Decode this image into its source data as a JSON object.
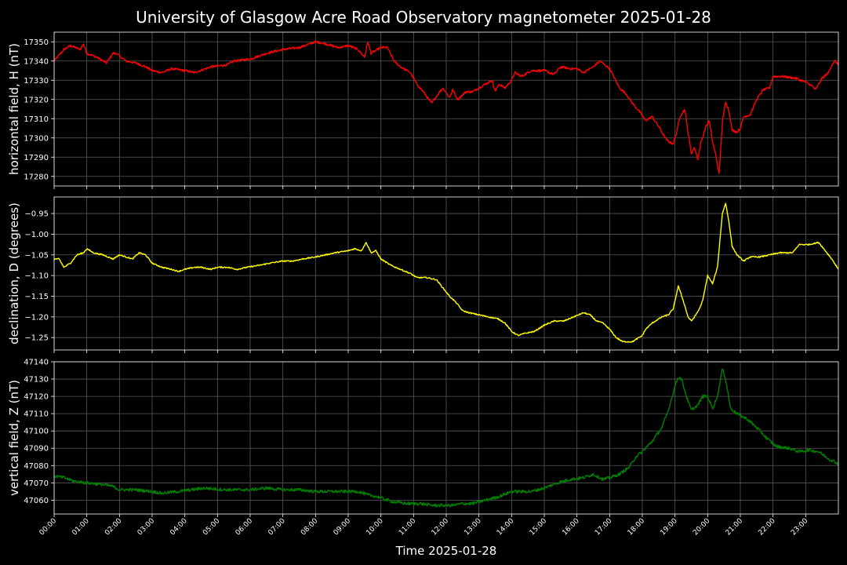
{
  "title": "University of Glasgow Acre Road Observatory magnetometer 2025-01-28",
  "xlabel": "Time 2025-01-28",
  "chart_data": [
    {
      "type": "line",
      "ylabel": "horizontal field, H (nT)",
      "color": "#ff0000",
      "ylim": [
        17275,
        17355
      ],
      "yticks": [
        17280,
        17290,
        17300,
        17310,
        17320,
        17330,
        17340,
        17350
      ],
      "decimals": 0,
      "noise": 0.6,
      "points": [
        [
          0,
          17340
        ],
        [
          0.3,
          17346
        ],
        [
          0.5,
          17348
        ],
        [
          0.8,
          17346
        ],
        [
          0.9,
          17349
        ],
        [
          1.0,
          17344
        ],
        [
          1.3,
          17342
        ],
        [
          1.6,
          17339
        ],
        [
          1.8,
          17344
        ],
        [
          1.9,
          17344
        ],
        [
          2.2,
          17340
        ],
        [
          2.5,
          17339
        ],
        [
          2.8,
          17337
        ],
        [
          3.0,
          17335
        ],
        [
          3.3,
          17334
        ],
        [
          3.6,
          17336
        ],
        [
          4.0,
          17335
        ],
        [
          4.3,
          17334
        ],
        [
          4.8,
          17337
        ],
        [
          5.3,
          17338
        ],
        [
          5.5,
          17340
        ],
        [
          6.0,
          17341
        ],
        [
          6.5,
          17344
        ],
        [
          7.0,
          17346
        ],
        [
          7.5,
          17347
        ],
        [
          8.0,
          17350
        ],
        [
          8.3,
          17349
        ],
        [
          8.7,
          17347
        ],
        [
          9.0,
          17348
        ],
        [
          9.3,
          17346
        ],
        [
          9.5,
          17342
        ],
        [
          9.6,
          17350
        ],
        [
          9.7,
          17344
        ],
        [
          10.0,
          17347
        ],
        [
          10.2,
          17347
        ],
        [
          10.4,
          17340
        ],
        [
          10.6,
          17337
        ],
        [
          10.9,
          17334
        ],
        [
          11.1,
          17328
        ],
        [
          11.3,
          17324
        ],
        [
          11.55,
          17318
        ],
        [
          11.8,
          17324
        ],
        [
          11.9,
          17326
        ],
        [
          12.1,
          17321
        ],
        [
          12.2,
          17325
        ],
        [
          12.35,
          17320
        ],
        [
          12.6,
          17324
        ],
        [
          12.8,
          17324
        ],
        [
          13.2,
          17328
        ],
        [
          13.4,
          17330
        ],
        [
          13.5,
          17324
        ],
        [
          13.6,
          17328
        ],
        [
          13.8,
          17326
        ],
        [
          14.0,
          17330
        ],
        [
          14.1,
          17334
        ],
        [
          14.3,
          17332
        ],
        [
          14.6,
          17335
        ],
        [
          15.0,
          17335
        ],
        [
          15.3,
          17333
        ],
        [
          15.5,
          17337
        ],
        [
          15.8,
          17336
        ],
        [
          16.0,
          17336
        ],
        [
          16.2,
          17334
        ],
        [
          16.5,
          17337
        ],
        [
          16.7,
          17340
        ],
        [
          17.0,
          17336
        ],
        [
          17.3,
          17326
        ],
        [
          17.5,
          17323
        ],
        [
          17.7,
          17318
        ],
        [
          17.9,
          17314
        ],
        [
          18.1,
          17309
        ],
        [
          18.3,
          17311
        ],
        [
          18.5,
          17306
        ],
        [
          18.7,
          17300
        ],
        [
          18.8,
          17298
        ],
        [
          18.95,
          17297
        ],
        [
          19.05,
          17303
        ],
        [
          19.15,
          17311
        ],
        [
          19.3,
          17315
        ],
        [
          19.4,
          17303
        ],
        [
          19.5,
          17292
        ],
        [
          19.6,
          17295
        ],
        [
          19.7,
          17289
        ],
        [
          19.8,
          17298
        ],
        [
          19.95,
          17306
        ],
        [
          20.05,
          17309
        ],
        [
          20.15,
          17298
        ],
        [
          20.25,
          17291
        ],
        [
          20.35,
          17281
        ],
        [
          20.45,
          17308
        ],
        [
          20.55,
          17319
        ],
        [
          20.65,
          17314
        ],
        [
          20.75,
          17304
        ],
        [
          20.9,
          17303
        ],
        [
          21.0,
          17305
        ],
        [
          21.1,
          17311
        ],
        [
          21.3,
          17312
        ],
        [
          21.5,
          17320
        ],
        [
          21.7,
          17325
        ],
        [
          21.9,
          17326
        ],
        [
          22.0,
          17332
        ],
        [
          22.3,
          17332
        ],
        [
          22.7,
          17331
        ],
        [
          23.0,
          17329
        ],
        [
          23.2,
          17327
        ],
        [
          23.3,
          17325
        ],
        [
          23.5,
          17331
        ],
        [
          23.7,
          17334
        ],
        [
          23.8,
          17338
        ],
        [
          23.9,
          17340
        ],
        [
          24.0,
          17338
        ]
      ]
    },
    {
      "type": "line",
      "ylabel": "declination, D (degrees)",
      "color": "#ffff00",
      "ylim": [
        -1.28,
        -0.91
      ],
      "yticks": [
        -1.25,
        -1.2,
        -1.15,
        -1.1,
        -1.05,
        -1.0,
        -0.95
      ],
      "decimals": 2,
      "noise": 0.0015,
      "points": [
        [
          0,
          -1.06
        ],
        [
          0.15,
          -1.06
        ],
        [
          0.3,
          -1.08
        ],
        [
          0.5,
          -1.07
        ],
        [
          0.7,
          -1.05
        ],
        [
          0.9,
          -1.045
        ],
        [
          1.0,
          -1.035
        ],
        [
          1.2,
          -1.045
        ],
        [
          1.5,
          -1.05
        ],
        [
          1.8,
          -1.06
        ],
        [
          2.0,
          -1.05
        ],
        [
          2.2,
          -1.055
        ],
        [
          2.4,
          -1.06
        ],
        [
          2.6,
          -1.045
        ],
        [
          2.8,
          -1.05
        ],
        [
          3.0,
          -1.07
        ],
        [
          3.3,
          -1.08
        ],
        [
          3.6,
          -1.085
        ],
        [
          3.8,
          -1.09
        ],
        [
          4.0,
          -1.085
        ],
        [
          4.3,
          -1.08
        ],
        [
          4.5,
          -1.08
        ],
        [
          4.8,
          -1.085
        ],
        [
          5.0,
          -1.08
        ],
        [
          5.3,
          -1.08
        ],
        [
          5.6,
          -1.085
        ],
        [
          5.9,
          -1.08
        ],
        [
          6.3,
          -1.075
        ],
        [
          6.6,
          -1.07
        ],
        [
          7.0,
          -1.065
        ],
        [
          7.3,
          -1.065
        ],
        [
          7.6,
          -1.06
        ],
        [
          8.0,
          -1.055
        ],
        [
          8.3,
          -1.05
        ],
        [
          8.6,
          -1.045
        ],
        [
          9.0,
          -1.04
        ],
        [
          9.2,
          -1.035
        ],
        [
          9.4,
          -1.04
        ],
        [
          9.55,
          -1.02
        ],
        [
          9.7,
          -1.045
        ],
        [
          9.85,
          -1.04
        ],
        [
          10.0,
          -1.06
        ],
        [
          10.3,
          -1.075
        ],
        [
          10.6,
          -1.085
        ],
        [
          10.9,
          -1.095
        ],
        [
          11.1,
          -1.105
        ],
        [
          11.4,
          -1.105
        ],
        [
          11.7,
          -1.11
        ],
        [
          11.9,
          -1.13
        ],
        [
          12.1,
          -1.15
        ],
        [
          12.3,
          -1.165
        ],
        [
          12.5,
          -1.185
        ],
        [
          12.7,
          -1.19
        ],
        [
          13.0,
          -1.195
        ],
        [
          13.3,
          -1.2
        ],
        [
          13.6,
          -1.205
        ],
        [
          13.8,
          -1.215
        ],
        [
          14.0,
          -1.235
        ],
        [
          14.2,
          -1.245
        ],
        [
          14.4,
          -1.24
        ],
        [
          14.7,
          -1.235
        ],
        [
          15.0,
          -1.22
        ],
        [
          15.3,
          -1.21
        ],
        [
          15.6,
          -1.21
        ],
        [
          15.9,
          -1.2
        ],
        [
          16.2,
          -1.19
        ],
        [
          16.4,
          -1.195
        ],
        [
          16.6,
          -1.21
        ],
        [
          16.8,
          -1.215
        ],
        [
          17.0,
          -1.23
        ],
        [
          17.2,
          -1.25
        ],
        [
          17.4,
          -1.26
        ],
        [
          17.7,
          -1.26
        ],
        [
          18.0,
          -1.245
        ],
        [
          18.1,
          -1.23
        ],
        [
          18.3,
          -1.215
        ],
        [
          18.6,
          -1.2
        ],
        [
          18.8,
          -1.195
        ],
        [
          18.95,
          -1.18
        ],
        [
          19.1,
          -1.125
        ],
        [
          19.25,
          -1.16
        ],
        [
          19.4,
          -1.2
        ],
        [
          19.5,
          -1.21
        ],
        [
          19.6,
          -1.2
        ],
        [
          19.75,
          -1.18
        ],
        [
          19.85,
          -1.16
        ],
        [
          20.0,
          -1.1
        ],
        [
          20.15,
          -1.12
        ],
        [
          20.3,
          -1.08
        ],
        [
          20.45,
          -0.95
        ],
        [
          20.55,
          -0.925
        ],
        [
          20.65,
          -0.97
        ],
        [
          20.75,
          -1.03
        ],
        [
          20.9,
          -1.05
        ],
        [
          21.1,
          -1.065
        ],
        [
          21.3,
          -1.055
        ],
        [
          21.6,
          -1.055
        ],
        [
          21.9,
          -1.05
        ],
        [
          22.2,
          -1.045
        ],
        [
          22.6,
          -1.045
        ],
        [
          22.8,
          -1.025
        ],
        [
          23.1,
          -1.025
        ],
        [
          23.4,
          -1.02
        ],
        [
          23.6,
          -1.04
        ],
        [
          23.8,
          -1.06
        ],
        [
          24.0,
          -1.085
        ]
      ]
    },
    {
      "type": "line",
      "ylabel": "vertical field, Z (nT)",
      "color": "#008000",
      "ylim": [
        47052,
        47140
      ],
      "yticks": [
        47060,
        47070,
        47080,
        47090,
        47100,
        47110,
        47120,
        47130,
        47140
      ],
      "decimals": 0,
      "noise": 0.9,
      "points": [
        [
          0,
          47074
        ],
        [
          0.3,
          47073
        ],
        [
          0.6,
          47071
        ],
        [
          1.0,
          47070
        ],
        [
          1.5,
          47069
        ],
        [
          1.8,
          47068
        ],
        [
          2.0,
          47066
        ],
        [
          2.5,
          47066
        ],
        [
          3.0,
          47065
        ],
        [
          3.3,
          47064
        ],
        [
          3.8,
          47065
        ],
        [
          4.2,
          47066
        ],
        [
          4.6,
          47067
        ],
        [
          5.2,
          47066
        ],
        [
          6.0,
          47066
        ],
        [
          6.5,
          47067
        ],
        [
          7.0,
          47066
        ],
        [
          7.5,
          47066
        ],
        [
          8.0,
          47065
        ],
        [
          8.5,
          47065
        ],
        [
          9.0,
          47065
        ],
        [
          9.3,
          47065
        ],
        [
          9.6,
          47063
        ],
        [
          9.9,
          47062
        ],
        [
          10.2,
          47060
        ],
        [
          10.4,
          47059
        ],
        [
          10.8,
          47058
        ],
        [
          11.2,
          47058
        ],
        [
          11.6,
          47057
        ],
        [
          11.9,
          47057
        ],
        [
          12.2,
          47057
        ],
        [
          12.5,
          47058
        ],
        [
          12.8,
          47058
        ],
        [
          13.2,
          47060
        ],
        [
          13.6,
          47062
        ],
        [
          14.0,
          47065
        ],
        [
          14.3,
          47065
        ],
        [
          14.6,
          47065
        ],
        [
          15.0,
          47067
        ],
        [
          15.4,
          47070
        ],
        [
          15.8,
          47072
        ],
        [
          16.2,
          47073
        ],
        [
          16.5,
          47075
        ],
        [
          16.8,
          47072
        ],
        [
          17.0,
          47073
        ],
        [
          17.3,
          47075
        ],
        [
          17.6,
          47079
        ],
        [
          17.8,
          47085
        ],
        [
          18.0,
          47088
        ],
        [
          18.3,
          47094
        ],
        [
          18.6,
          47102
        ],
        [
          18.8,
          47112
        ],
        [
          19.0,
          47126
        ],
        [
          19.1,
          47131
        ],
        [
          19.2,
          47130
        ],
        [
          19.35,
          47120
        ],
        [
          19.5,
          47112
        ],
        [
          19.7,
          47115
        ],
        [
          19.85,
          47120
        ],
        [
          20.0,
          47120
        ],
        [
          20.15,
          47113
        ],
        [
          20.3,
          47120
        ],
        [
          20.45,
          47136
        ],
        [
          20.55,
          47130
        ],
        [
          20.7,
          47113
        ],
        [
          20.9,
          47110
        ],
        [
          21.2,
          47107
        ],
        [
          21.5,
          47102
        ],
        [
          21.8,
          47096
        ],
        [
          22.1,
          47091
        ],
        [
          22.5,
          47090
        ],
        [
          22.8,
          47088
        ],
        [
          23.1,
          47089
        ],
        [
          23.4,
          47088
        ],
        [
          23.7,
          47084
        ],
        [
          24.0,
          47081
        ]
      ]
    }
  ],
  "xticks": [
    "00:00",
    "01:00",
    "02:00",
    "03:00",
    "04:00",
    "05:00",
    "06:00",
    "07:00",
    "08:00",
    "09:00",
    "10:00",
    "11:00",
    "12:00",
    "13:00",
    "14:00",
    "15:00",
    "16:00",
    "17:00",
    "18:00",
    "19:00",
    "20:00",
    "21:00",
    "22:00",
    "23:00"
  ],
  "xlim": [
    0,
    24
  ],
  "grid": true
}
